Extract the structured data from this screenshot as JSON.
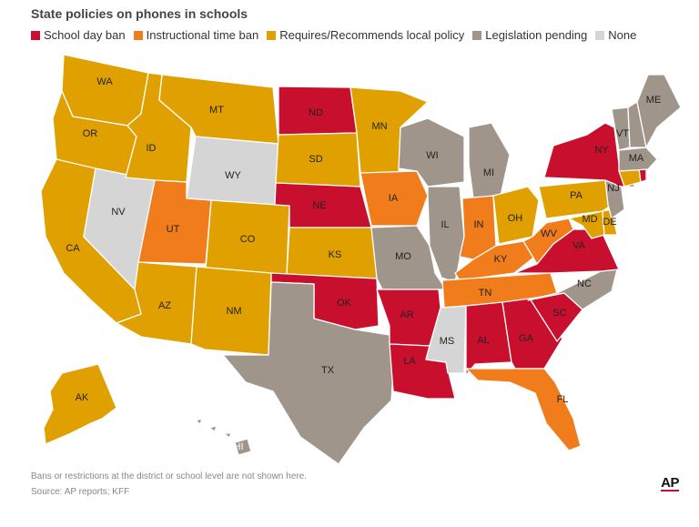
{
  "title": "State policies on phones in schools",
  "legend": [
    {
      "label": "School day ban",
      "color": "#c8102e"
    },
    {
      "label": "Instructional time ban",
      "color": "#f07c1c"
    },
    {
      "label": "Requires/Recommends local policy",
      "color": "#e0a100"
    },
    {
      "label": "Legislation pending",
      "color": "#a0958b"
    },
    {
      "label": "None",
      "color": "#d5d5d5"
    }
  ],
  "colors": {
    "ban": "#c8102e",
    "instr": "#f07c1c",
    "local": "#e0a100",
    "pending": "#a0958b",
    "none": "#d5d5d5"
  },
  "states": {
    "WA": "local",
    "OR": "local",
    "CA": "local",
    "NV": "none",
    "ID": "local",
    "MT": "local",
    "WY": "none",
    "UT": "instr",
    "AZ": "local",
    "NM": "local",
    "CO": "local",
    "ND": "ban",
    "SD": "local",
    "NE": "ban",
    "KS": "local",
    "OK": "ban",
    "TX": "pending",
    "MN": "local",
    "IA": "instr",
    "MO": "pending",
    "AR": "ban",
    "LA": "ban",
    "WI": "pending",
    "IL": "pending",
    "MI": "pending",
    "IN": "instr",
    "OH": "local",
    "KY": "instr",
    "TN": "instr",
    "MS": "none",
    "AL": "ban",
    "GA": "ban",
    "FL": "instr",
    "SC": "ban",
    "NC": "pending",
    "VA": "ban",
    "WV": "instr",
    "PA": "local",
    "NY": "ban",
    "NJ": "pending",
    "DE": "local",
    "MD": "local",
    "CT": "local",
    "RI": "ban",
    "MA": "pending",
    "VT": "pending",
    "NH": "pending",
    "ME": "pending",
    "AK": "local",
    "HI": "pending"
  },
  "footnote": "Bans or restrictions at the district or school level are not shown here.",
  "source": "Source: AP reports; KFF",
  "logo": "AP"
}
